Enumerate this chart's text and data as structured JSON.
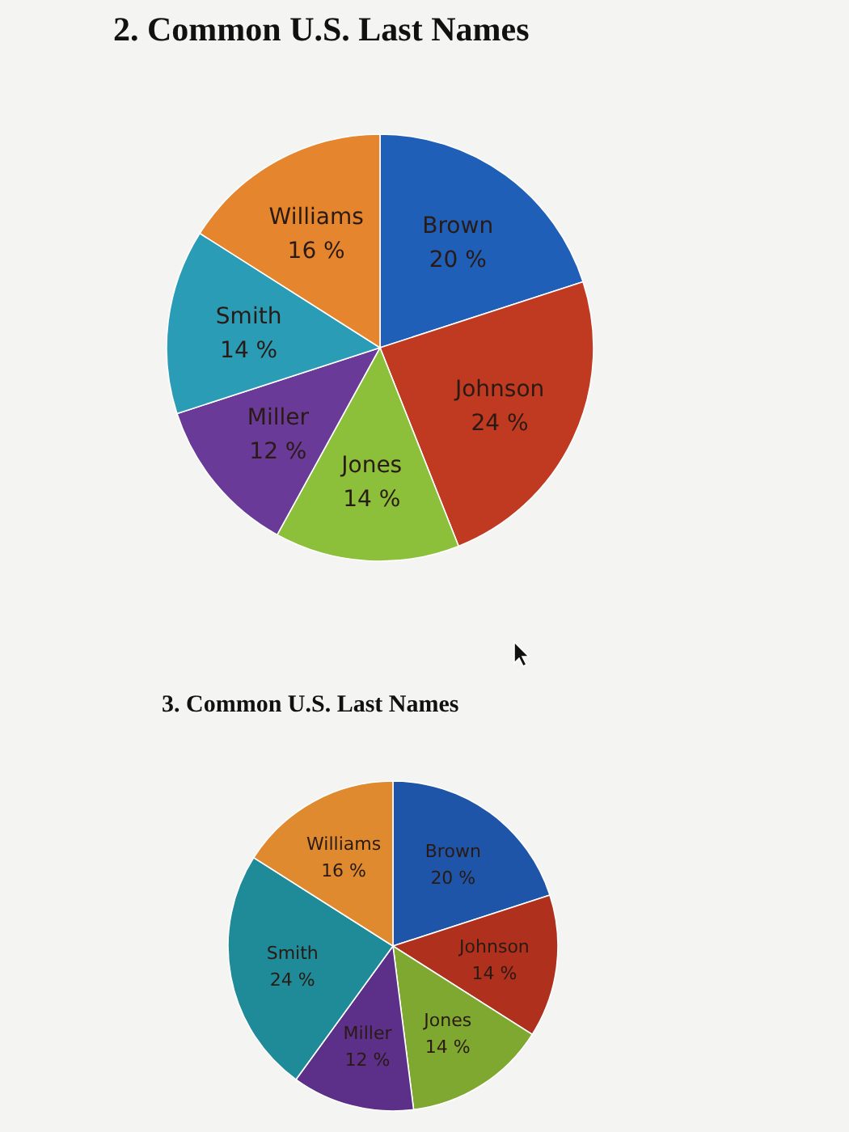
{
  "chart_data": [
    {
      "type": "pie",
      "title": "2. Common U.S. Last Names",
      "categories": [
        "Brown",
        "Johnson",
        "Jones",
        "Miller",
        "Smith",
        "Williams"
      ],
      "values": [
        20,
        24,
        14,
        12,
        14,
        16
      ],
      "value_labels": [
        "20 %",
        "24 %",
        "14 %",
        "12 %",
        "14 %",
        "16 %"
      ],
      "colors": [
        "#1f5fb8",
        "#c03a22",
        "#8cbf3a",
        "#6a3a98",
        "#2a9cb6",
        "#e5862e"
      ]
    },
    {
      "type": "pie",
      "title": "3. Common U.S. Last Names",
      "categories": [
        "Brown",
        "Johnson",
        "Jones",
        "Miller",
        "Smith",
        "Williams"
      ],
      "values": [
        20,
        14,
        14,
        12,
        24,
        16
      ],
      "value_labels": [
        "20 %",
        "14 %",
        "14 %",
        "12 %",
        "24 %",
        "16 %"
      ],
      "colors": [
        "#1f55a8",
        "#b0301e",
        "#7fa830",
        "#5c2f88",
        "#1f8a98",
        "#e08a30"
      ]
    }
  ]
}
